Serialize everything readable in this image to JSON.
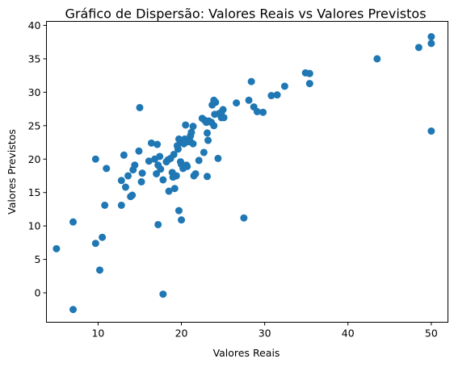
{
  "chart_data": {
    "type": "scatter",
    "title": "Gráfico de Dispersão: Valores Reais vs Valores Previstos",
    "xlabel": "Valores Reais",
    "ylabel": "Valores Previstos",
    "xlim": [
      3.8,
      52.0
    ],
    "ylim": [
      -4.4,
      40.6
    ],
    "xticks": [
      10,
      20,
      30,
      40,
      50
    ],
    "yticks": [
      0,
      5,
      10,
      15,
      20,
      25,
      30,
      35,
      40
    ],
    "grid": false,
    "marker_color": "#1f77b4",
    "series": [
      {
        "points": [
          [
            5.0,
            6.6
          ],
          [
            7.0,
            10.6
          ],
          [
            7.0,
            -2.5
          ],
          [
            9.7,
            20.0
          ],
          [
            9.7,
            7.4
          ],
          [
            10.2,
            3.4
          ],
          [
            10.5,
            8.3
          ],
          [
            10.8,
            13.1
          ],
          [
            11.0,
            18.6
          ],
          [
            12.8,
            13.1
          ],
          [
            12.8,
            16.8
          ],
          [
            13.1,
            20.6
          ],
          [
            13.3,
            15.8
          ],
          [
            13.6,
            17.5
          ],
          [
            13.9,
            14.4
          ],
          [
            14.1,
            14.6
          ],
          [
            14.2,
            18.4
          ],
          [
            14.4,
            19.1
          ],
          [
            14.9,
            21.2
          ],
          [
            15.0,
            27.7
          ],
          [
            15.2,
            16.6
          ],
          [
            15.3,
            17.9
          ],
          [
            16.1,
            19.7
          ],
          [
            16.4,
            22.4
          ],
          [
            16.8,
            20.0
          ],
          [
            17.0,
            17.8
          ],
          [
            17.1,
            22.2
          ],
          [
            17.2,
            19.1
          ],
          [
            17.2,
            10.2
          ],
          [
            17.4,
            20.4
          ],
          [
            17.5,
            18.5
          ],
          [
            17.8,
            16.9
          ],
          [
            17.8,
            -0.2
          ],
          [
            18.2,
            19.6
          ],
          [
            18.4,
            19.9
          ],
          [
            18.5,
            15.2
          ],
          [
            18.7,
            20.1
          ],
          [
            18.9,
            18.0
          ],
          [
            19.0,
            17.3
          ],
          [
            19.1,
            20.7
          ],
          [
            19.2,
            15.6
          ],
          [
            19.4,
            17.5
          ],
          [
            19.5,
            22.0
          ],
          [
            19.6,
            21.5
          ],
          [
            19.7,
            23.0
          ],
          [
            19.7,
            12.3
          ],
          [
            19.9,
            19.6
          ],
          [
            20.0,
            19.2
          ],
          [
            20.0,
            10.9
          ],
          [
            20.1,
            22.6
          ],
          [
            20.2,
            18.6
          ],
          [
            20.3,
            22.3
          ],
          [
            20.4,
            23.0
          ],
          [
            20.5,
            25.1
          ],
          [
            20.6,
            19.1
          ],
          [
            20.7,
            18.9
          ],
          [
            20.8,
            22.6
          ],
          [
            21.0,
            22.8
          ],
          [
            21.1,
            23.5
          ],
          [
            21.2,
            24.0
          ],
          [
            21.4,
            22.3
          ],
          [
            21.4,
            24.9
          ],
          [
            21.5,
            17.5
          ],
          [
            21.7,
            17.8
          ],
          [
            22.1,
            19.8
          ],
          [
            22.5,
            26.1
          ],
          [
            22.7,
            21.0
          ],
          [
            22.8,
            25.8
          ],
          [
            23.0,
            25.5
          ],
          [
            23.1,
            23.9
          ],
          [
            23.1,
            17.4
          ],
          [
            23.2,
            22.8
          ],
          [
            23.3,
            25.7
          ],
          [
            23.6,
            25.5
          ],
          [
            23.7,
            28.1
          ],
          [
            23.9,
            28.8
          ],
          [
            23.9,
            25.0
          ],
          [
            24.0,
            26.7
          ],
          [
            24.1,
            28.5
          ],
          [
            24.4,
            20.1
          ],
          [
            24.5,
            26.8
          ],
          [
            24.8,
            26.2
          ],
          [
            24.8,
            27.0
          ],
          [
            25.0,
            27.4
          ],
          [
            25.1,
            26.2
          ],
          [
            26.6,
            28.4
          ],
          [
            27.5,
            11.2
          ],
          [
            28.1,
            28.8
          ],
          [
            28.4,
            31.6
          ],
          [
            28.7,
            27.8
          ],
          [
            29.1,
            27.1
          ],
          [
            29.8,
            27.0
          ],
          [
            30.8,
            29.5
          ],
          [
            31.5,
            29.6
          ],
          [
            32.4,
            30.9
          ],
          [
            34.9,
            32.9
          ],
          [
            35.4,
            32.8
          ],
          [
            35.4,
            31.3
          ],
          [
            43.5,
            35.0
          ],
          [
            48.5,
            36.7
          ],
          [
            50.0,
            38.3
          ],
          [
            50.0,
            37.3
          ],
          [
            50.0,
            24.2
          ]
        ]
      }
    ]
  }
}
